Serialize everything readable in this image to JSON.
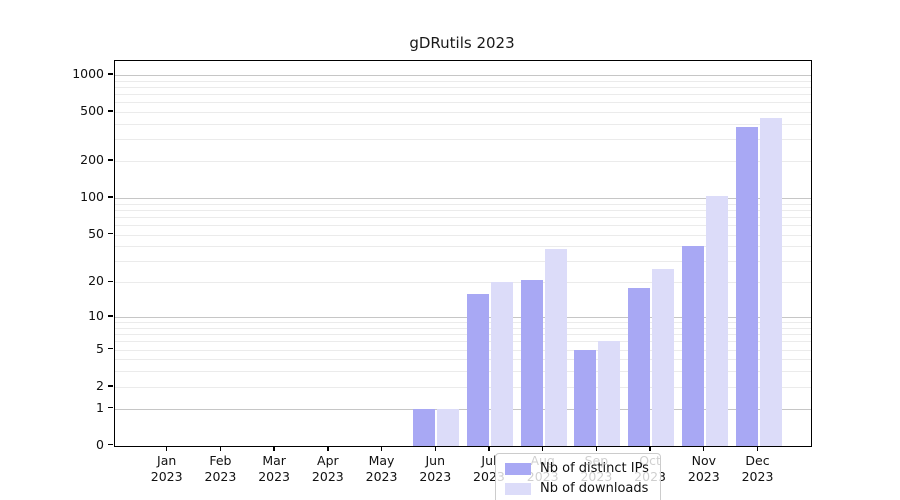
{
  "chart_data": {
    "type": "bar",
    "title": "gDRutils 2023",
    "year_label": "2023",
    "categories": [
      "Jan",
      "Feb",
      "Mar",
      "Apr",
      "May",
      "Jun",
      "Jul",
      "Aug",
      "Sep",
      "Oct",
      "Nov",
      "Dec"
    ],
    "series": [
      {
        "key": "ips",
        "name": "Nb of distinct IPs",
        "color": "#a8a8f4",
        "values": [
          0,
          0,
          0,
          0,
          0,
          1,
          16,
          21,
          5,
          18,
          40,
          378
        ]
      },
      {
        "key": "downloads",
        "name": "Nb of downloads",
        "color": "#dcdcf9",
        "values": [
          0,
          0,
          0,
          0,
          0,
          1,
          20,
          38,
          6,
          26,
          105,
          450
        ]
      }
    ],
    "y_ticks": [
      0,
      1,
      2,
      5,
      10,
      20,
      50,
      100,
      200,
      500,
      1000
    ],
    "y_major_gridlines": [
      1,
      10,
      100,
      1000
    ],
    "y_minor_gridlines": [
      2,
      3,
      4,
      5,
      6,
      7,
      8,
      9,
      20,
      30,
      40,
      50,
      60,
      70,
      80,
      90,
      200,
      300,
      400,
      500,
      600,
      700,
      800,
      900
    ],
    "y_scale": "log10(1+x)",
    "ylim": [
      0,
      1300
    ],
    "grid": "horizontal",
    "legend": {
      "position": "bottom-center"
    }
  }
}
